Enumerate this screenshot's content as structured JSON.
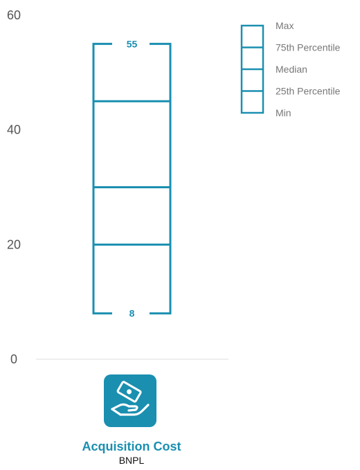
{
  "colors": {
    "accent": "#1a8fb0",
    "axis": "#dddddd",
    "tick_text": "#555555",
    "legend_text": "#777777"
  },
  "chart_data": {
    "type": "boxplot",
    "ylim": [
      0,
      60
    ],
    "yticks": [
      0,
      20,
      40,
      60
    ],
    "grid": false,
    "legend_position": "top-right",
    "legend": [
      "Max",
      "75th Percentile",
      "Median",
      "25th Percentile",
      "Min"
    ],
    "categories": [
      {
        "title": "Acquisition Cost",
        "subtitle": "BNPL",
        "icon": "hand-receiving-money-icon",
        "min": 8,
        "q1": 20,
        "median": 30,
        "q3": 45,
        "max": 55,
        "max_label": "55",
        "min_label": "8"
      }
    ]
  }
}
